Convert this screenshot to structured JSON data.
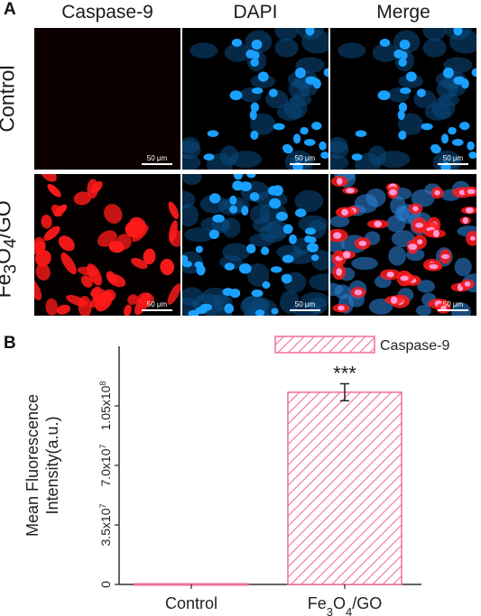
{
  "panel_a": {
    "letter": "A",
    "columns": [
      "Caspase-9",
      "DAPI",
      "Merge"
    ],
    "rows": [
      {
        "label": "Control"
      },
      {
        "label_html": "Fe<sub>3</sub>O<sub>4</sub>/GO"
      }
    ],
    "scale_bar": "50 μm",
    "colors": {
      "caspase": "#ff1a1a",
      "dapi": "#1aa0ff",
      "merge_overlap": "#ff9ad6"
    }
  },
  "panel_b": {
    "letter": "B"
  },
  "chart_data": {
    "type": "bar",
    "categories": [
      "Control",
      "Fe3O4/GO"
    ],
    "category_labels_html": [
      "Control",
      "Fe<tspan baseline-shift='sub' font-size='13'>3</tspan>O<tspan baseline-shift='sub' font-size='13'>4</tspan>/GO"
    ],
    "series": [
      {
        "name": "Caspase-9",
        "values": [
          400000,
          113000000
        ],
        "errors": [
          0,
          5000000
        ],
        "color": "#f06f98",
        "pattern": "diagonal-hatch"
      }
    ],
    "ylabel_line1": "Mean Fluorescence",
    "ylabel_line2": "Intensity(a.u.)",
    "ylim": [
      0,
      140000000
    ],
    "yticks": [
      {
        "value": 0,
        "label": "0"
      },
      {
        "value": 35000000,
        "label": "3.5x10<tspan baseline-shift='super' font-size='9'>7</tspan>"
      },
      {
        "value": 70000000,
        "label": "7.0x10<tspan baseline-shift='super' font-size='9'>7</tspan>"
      },
      {
        "value": 105000000,
        "label": "1.05x10<tspan baseline-shift='super' font-size='9'>8</tspan>"
      }
    ],
    "annotations": [
      {
        "category": "Fe3O4/GO",
        "text": "***"
      }
    ],
    "legend_position": "top-right",
    "grid": false
  }
}
